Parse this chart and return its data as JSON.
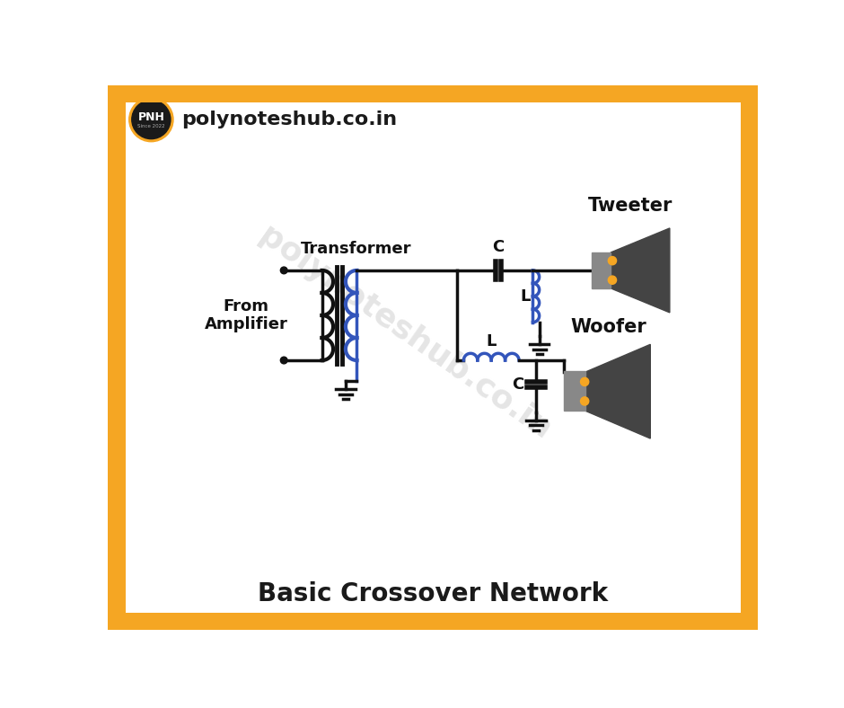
{
  "bg_color": "#ffffff",
  "border_color": "#F5A623",
  "border_width": 18,
  "title": "Basic Crossover Network",
  "title_fontsize": 20,
  "title_color": "#1a1a1a",
  "logo_text": "polynoteshub.co.in",
  "watermark": "polynoteshub.co.in",
  "watermark_color": "#cccccc",
  "line_color": "#111111",
  "blue_color": "#3355bb",
  "speaker_dark": "#444444",
  "speaker_mid": "#888888",
  "dot_color": "#F5A623",
  "lw": 2.5
}
